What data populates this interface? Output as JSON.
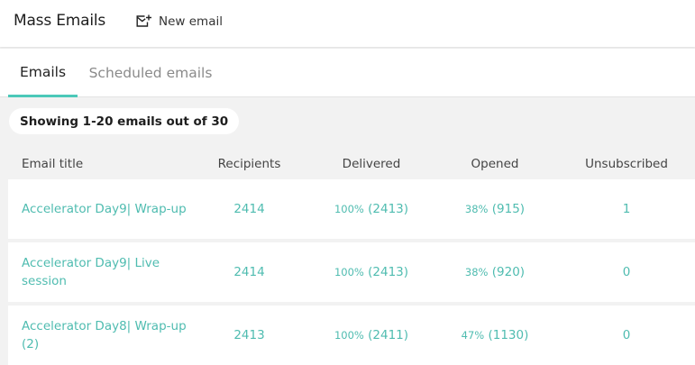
{
  "header": {
    "title": "Mass Emails",
    "new_email_label": "New email",
    "new_email_icon": "compose-mail-icon"
  },
  "tabs": [
    {
      "label": "Emails",
      "active": true
    },
    {
      "label": "Scheduled emails",
      "active": false
    }
  ],
  "summary": "Showing 1-20 emails out of 30",
  "table": {
    "columns": [
      "Email title",
      "Recipients",
      "Delivered",
      "Opened",
      "Unsubscribed"
    ],
    "rows": [
      {
        "title": "Accelerator Day9| Wrap-up",
        "recipients": "2414",
        "delivered_pct": "100%",
        "delivered_count": "(2413)",
        "opened_pct": "38%",
        "opened_count": "(915)",
        "unsubscribed": "1"
      },
      {
        "title": "Accelerator Day9| Live session",
        "recipients": "2414",
        "delivered_pct": "100%",
        "delivered_count": "(2413)",
        "opened_pct": "38%",
        "opened_count": "(920)",
        "unsubscribed": "0"
      },
      {
        "title": "Accelerator Day8| Wrap-up (2)",
        "recipients": "2413",
        "delivered_pct": "100%",
        "delivered_count": "(2411)",
        "opened_pct": "47%",
        "opened_count": "(1130)",
        "unsubscribed": "0"
      }
    ]
  },
  "colors": {
    "accent": "#4cc9b9",
    "link": "#4fbcb0",
    "background": "#f2f2f2"
  }
}
